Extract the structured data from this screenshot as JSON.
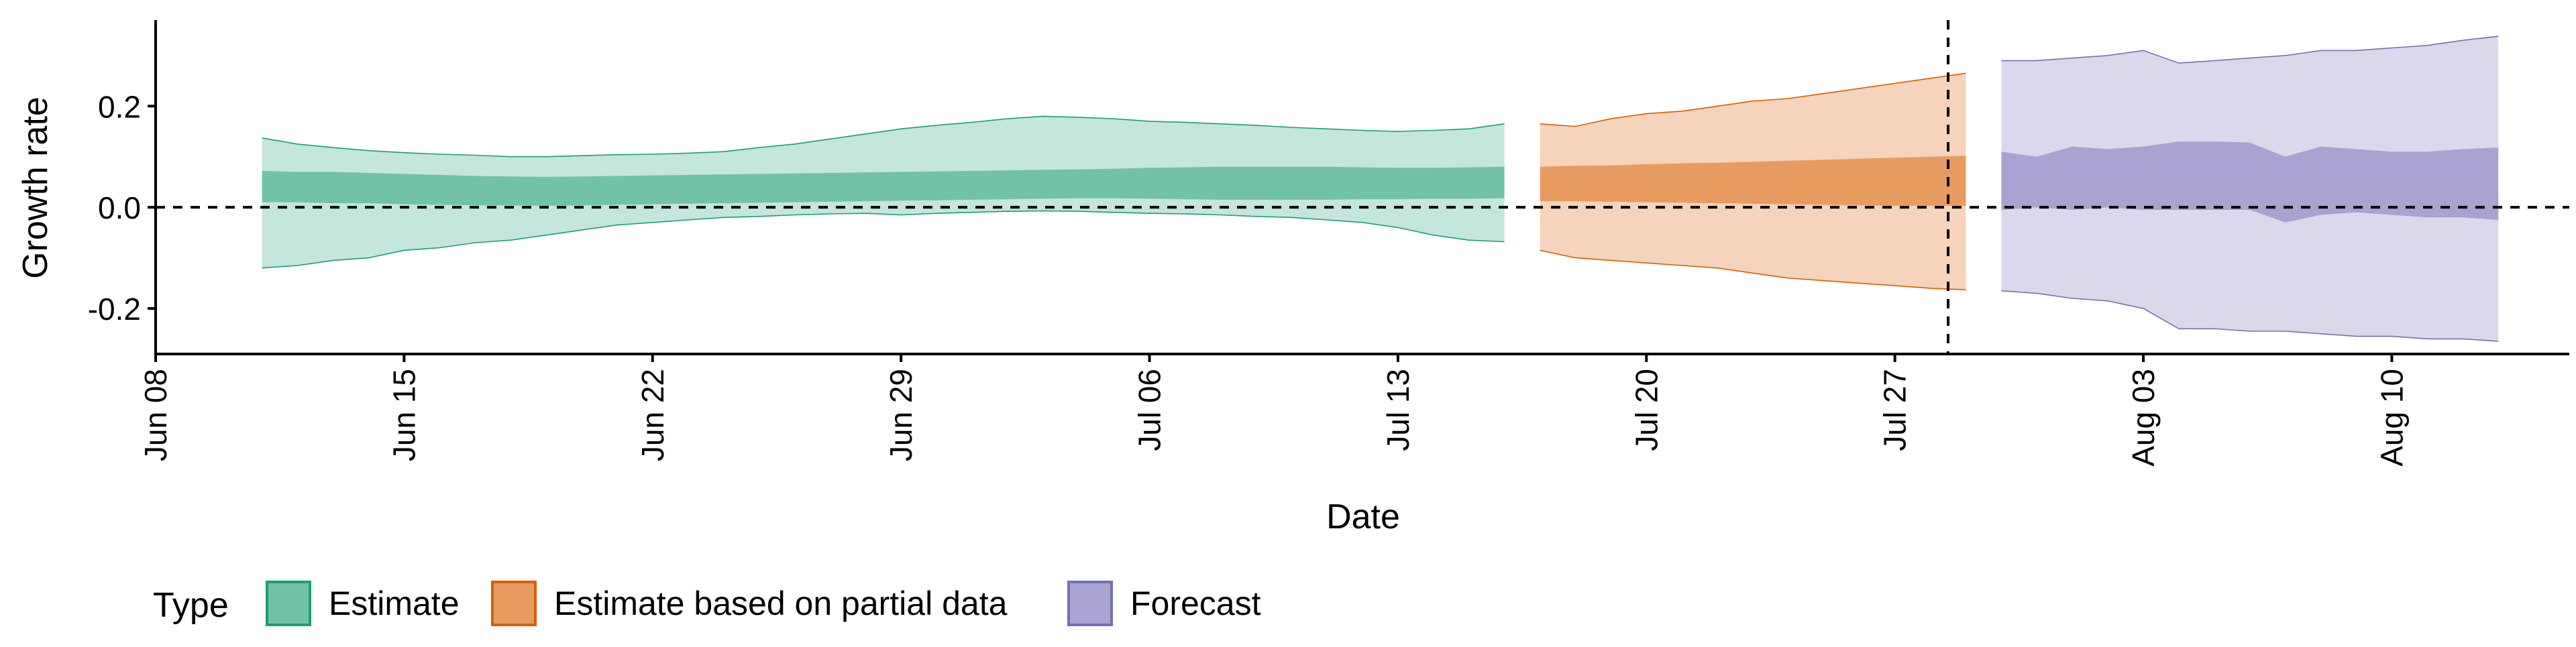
{
  "chart_data": {
    "type": "area",
    "xlabel": "Date",
    "ylabel": "Growth rate",
    "x_ticks": [
      "Jun 08",
      "Jun 15",
      "Jun 22",
      "Jun 29",
      "Jul 06",
      "Jul 13",
      "Jul 20",
      "Jul 27",
      "Aug 03",
      "Aug 10"
    ],
    "x_tick_dates": [
      "2020-06-08",
      "2020-06-15",
      "2020-06-22",
      "2020-06-29",
      "2020-07-06",
      "2020-07-13",
      "2020-07-20",
      "2020-07-27",
      "2020-08-03",
      "2020-08-10"
    ],
    "xlim": [
      "2020-06-08",
      "2020-08-15"
    ],
    "y_ticks": [
      -0.2,
      0.0,
      0.2
    ],
    "ylim": [
      -0.29,
      0.37
    ],
    "reference_lines": {
      "horizontal_y": 0.0,
      "vertical_x": "2020-07-28T12:00"
    },
    "legend": {
      "title": "Type",
      "position": "bottom-left"
    },
    "grid": false,
    "series": [
      {
        "name": "Estimate",
        "color": "#1b9e77",
        "fill_light": "#c4e6dc",
        "fill_dark": "#72c2a7",
        "x": [
          "2020-06-11",
          "2020-06-12",
          "2020-06-13",
          "2020-06-14",
          "2020-06-15",
          "2020-06-16",
          "2020-06-17",
          "2020-06-18",
          "2020-06-19",
          "2020-06-20",
          "2020-06-21",
          "2020-06-22",
          "2020-06-23",
          "2020-06-24",
          "2020-06-25",
          "2020-06-26",
          "2020-06-27",
          "2020-06-28",
          "2020-06-29",
          "2020-06-30",
          "2020-07-01",
          "2020-07-02",
          "2020-07-03",
          "2020-07-04",
          "2020-07-05",
          "2020-07-06",
          "2020-07-07",
          "2020-07-08",
          "2020-07-09",
          "2020-07-10",
          "2020-07-11",
          "2020-07-12",
          "2020-07-13",
          "2020-07-14",
          "2020-07-15",
          "2020-07-16"
        ],
        "lower_90": [
          -0.12,
          -0.115,
          -0.105,
          -0.1,
          -0.085,
          -0.08,
          -0.07,
          -0.065,
          -0.055,
          -0.045,
          -0.035,
          -0.03,
          -0.025,
          -0.02,
          -0.018,
          -0.015,
          -0.013,
          -0.012,
          -0.015,
          -0.012,
          -0.01,
          -0.008,
          -0.007,
          -0.008,
          -0.01,
          -0.012,
          -0.013,
          -0.015,
          -0.018,
          -0.02,
          -0.025,
          -0.03,
          -0.04,
          -0.055,
          -0.065,
          -0.068
        ],
        "upper_90": [
          0.137,
          0.125,
          0.118,
          0.112,
          0.108,
          0.105,
          0.103,
          0.1,
          0.1,
          0.102,
          0.104,
          0.105,
          0.107,
          0.11,
          0.118,
          0.125,
          0.135,
          0.145,
          0.155,
          0.162,
          0.168,
          0.175,
          0.18,
          0.178,
          0.175,
          0.17,
          0.168,
          0.165,
          0.162,
          0.158,
          0.155,
          0.152,
          0.15,
          0.152,
          0.155,
          0.165
        ],
        "lower_50": [
          0.01,
          0.01,
          0.008,
          0.008,
          0.006,
          0.005,
          0.004,
          0.004,
          0.003,
          0.004,
          0.005,
          0.006,
          0.007,
          0.008,
          0.009,
          0.01,
          0.011,
          0.012,
          0.013,
          0.014,
          0.015,
          0.016,
          0.017,
          0.018,
          0.018,
          0.017,
          0.016,
          0.015,
          0.015,
          0.015,
          0.015,
          0.016,
          0.016,
          0.017,
          0.017,
          0.018
        ],
        "upper_50": [
          0.072,
          0.07,
          0.07,
          0.068,
          0.066,
          0.064,
          0.062,
          0.061,
          0.06,
          0.061,
          0.062,
          0.063,
          0.064,
          0.065,
          0.066,
          0.067,
          0.068,
          0.069,
          0.07,
          0.071,
          0.072,
          0.073,
          0.074,
          0.075,
          0.076,
          0.078,
          0.079,
          0.08,
          0.08,
          0.08,
          0.08,
          0.079,
          0.078,
          0.078,
          0.079,
          0.08
        ]
      },
      {
        "name": "Estimate based on partial data",
        "color": "#d95f02",
        "fill_light": "#f5d3bc",
        "fill_dark": "#e89b60",
        "x": [
          "2020-07-17",
          "2020-07-18",
          "2020-07-19",
          "2020-07-20",
          "2020-07-21",
          "2020-07-22",
          "2020-07-23",
          "2020-07-24",
          "2020-07-25",
          "2020-07-26",
          "2020-07-27",
          "2020-07-28",
          "2020-07-29"
        ],
        "lower_90": [
          -0.085,
          -0.1,
          -0.105,
          -0.11,
          -0.115,
          -0.12,
          -0.13,
          -0.14,
          -0.145,
          -0.15,
          -0.155,
          -0.16,
          -0.163
        ],
        "upper_90": [
          0.165,
          0.16,
          0.175,
          0.185,
          0.19,
          0.2,
          0.21,
          0.215,
          0.225,
          0.235,
          0.245,
          0.255,
          0.265
        ],
        "lower_50": [
          0.012,
          0.012,
          0.011,
          0.01,
          0.009,
          0.008,
          0.007,
          0.006,
          0.005,
          0.004,
          0.003,
          0.003,
          0.003
        ],
        "upper_50": [
          0.08,
          0.082,
          0.083,
          0.085,
          0.087,
          0.088,
          0.09,
          0.092,
          0.094,
          0.096,
          0.098,
          0.1,
          0.102
        ]
      },
      {
        "name": "Forecast",
        "color": "#7570b3",
        "fill_light": "#dad8ea",
        "fill_dark": "#a8a3d1",
        "x": [
          "2020-07-30",
          "2020-07-31",
          "2020-08-01",
          "2020-08-02",
          "2020-08-03",
          "2020-08-04",
          "2020-08-05",
          "2020-08-06",
          "2020-08-07",
          "2020-08-08",
          "2020-08-09",
          "2020-08-10",
          "2020-08-11",
          "2020-08-12",
          "2020-08-13"
        ],
        "lower_90": [
          -0.165,
          -0.17,
          -0.18,
          -0.185,
          -0.2,
          -0.24,
          -0.24,
          -0.245,
          -0.245,
          -0.25,
          -0.255,
          -0.255,
          -0.26,
          -0.26,
          -0.265
        ],
        "upper_90": [
          0.29,
          0.29,
          0.295,
          0.3,
          0.31,
          0.285,
          0.29,
          0.295,
          0.3,
          0.31,
          0.31,
          0.315,
          0.32,
          0.33,
          0.338
        ],
        "lower_50": [
          -0.005,
          0.0,
          -0.005,
          0.0,
          -0.005,
          -0.005,
          -0.005,
          -0.005,
          -0.03,
          -0.015,
          -0.01,
          -0.015,
          -0.02,
          -0.02,
          -0.025
        ],
        "upper_50": [
          0.11,
          0.1,
          0.12,
          0.115,
          0.12,
          0.13,
          0.13,
          0.128,
          0.1,
          0.12,
          0.115,
          0.11,
          0.11,
          0.115,
          0.118
        ]
      }
    ]
  }
}
